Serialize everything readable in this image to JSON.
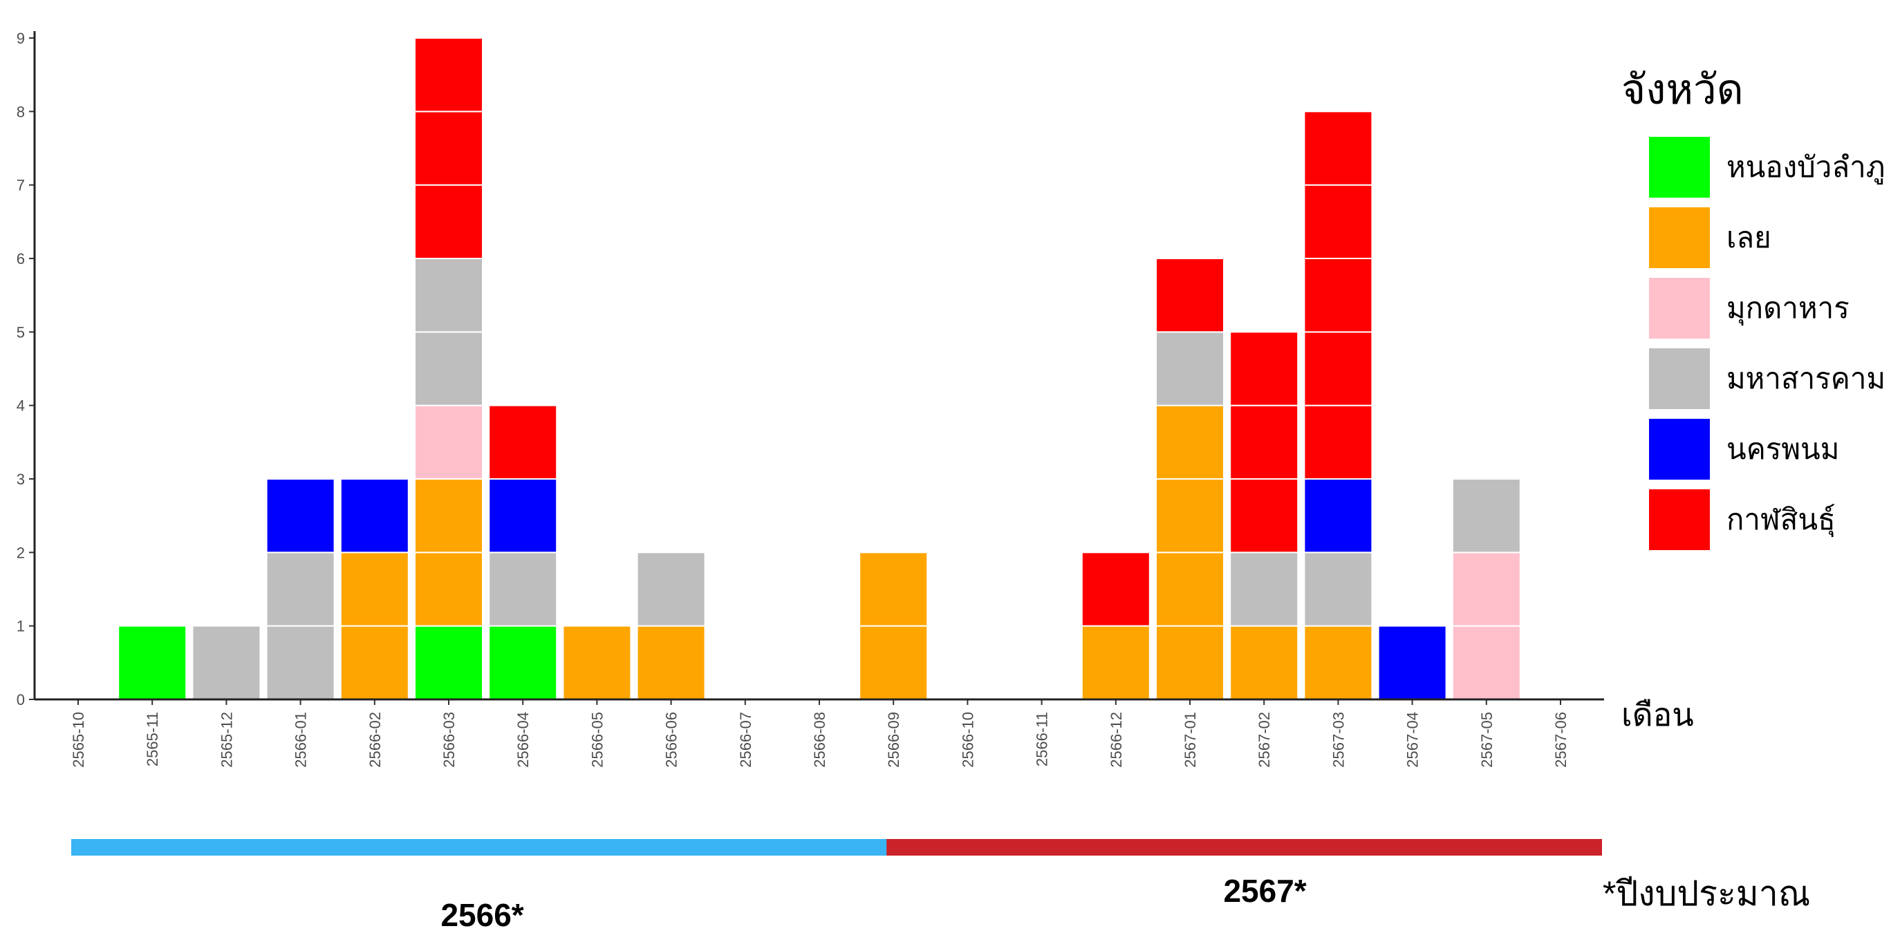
{
  "chart_data": {
    "type": "bar",
    "stacked": true,
    "categories": [
      "2565-10",
      "2565-11",
      "2565-12",
      "2566-01",
      "2566-02",
      "2566-03",
      "2566-04",
      "2566-05",
      "2566-06",
      "2566-07",
      "2566-08",
      "2566-09",
      "2566-10",
      "2566-11",
      "2566-12",
      "2567-01",
      "2567-02",
      "2567-03",
      "2567-04",
      "2567-05",
      "2567-06"
    ],
    "series": [
      {
        "name": "หนองบัวลำภู",
        "color": "#00ff00",
        "values": [
          0,
          1,
          0,
          0,
          0,
          1,
          1,
          0,
          0,
          0,
          0,
          0,
          0,
          0,
          0,
          0,
          0,
          0,
          0,
          0,
          0
        ]
      },
      {
        "name": "เลย",
        "color": "#ffa500",
        "values": [
          0,
          0,
          0,
          0,
          2,
          2,
          0,
          1,
          1,
          0,
          0,
          2,
          0,
          0,
          1,
          4,
          1,
          1,
          0,
          0,
          0
        ]
      },
      {
        "name": "มุกดาหาร",
        "color": "#ffc0cb",
        "values": [
          0,
          0,
          0,
          0,
          0,
          1,
          0,
          0,
          0,
          0,
          0,
          0,
          0,
          0,
          0,
          0,
          0,
          0,
          0,
          2,
          0
        ]
      },
      {
        "name": "มหาสารคาม",
        "color": "#bebebe",
        "values": [
          0,
          0,
          1,
          2,
          0,
          2,
          1,
          0,
          1,
          0,
          0,
          0,
          0,
          0,
          0,
          1,
          1,
          1,
          0,
          1,
          0
        ]
      },
      {
        "name": "นครพนม",
        "color": "#0000ff",
        "values": [
          0,
          0,
          0,
          1,
          1,
          0,
          1,
          0,
          0,
          0,
          0,
          0,
          0,
          0,
          0,
          0,
          0,
          1,
          1,
          0,
          0
        ]
      },
      {
        "name": "กาฬสินธุ์",
        "color": "#ff0000",
        "values": [
          0,
          0,
          0,
          0,
          0,
          3,
          1,
          0,
          0,
          0,
          0,
          0,
          0,
          0,
          1,
          1,
          3,
          5,
          0,
          0,
          0
        ]
      }
    ],
    "ylim": [
      0,
      9
    ],
    "yticks": [
      "0",
      "1",
      "2",
      "3",
      "4",
      "5",
      "6",
      "7",
      "8",
      "9"
    ],
    "xlabel": "เดือน",
    "ylabel": "",
    "legend_title": "จังหวัด",
    "legend_position": "right"
  },
  "fiscal_years": [
    {
      "label": "2566*",
      "color": "#3ab4f2",
      "start": "2565-10",
      "end": "2566-09"
    },
    {
      "label": "2567*",
      "color": "#cc2229",
      "start": "2566-09",
      "end": "2567-06"
    }
  ],
  "footnote": "*ปีงบประมาณ"
}
